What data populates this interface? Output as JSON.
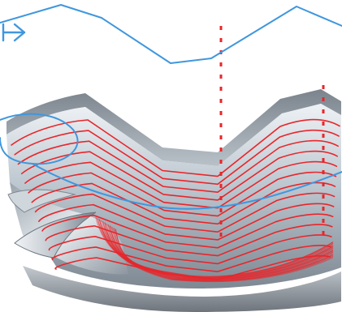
{
  "colors": {
    "background": "#ffffff",
    "rapid_move_path": "#3f97de",
    "cutting_toolpath": "#e8262b",
    "surface_light": "#d6dde3",
    "surface_mid": "#a8b2bb",
    "surface_dark": "#66707a",
    "base_plate": "#8f969d"
  },
  "layers": [
    {
      "id": "machined-surface",
      "kind": "3d-sculptured-surface"
    },
    {
      "id": "contour-toolpath",
      "kind": "offset-contour-lines",
      "color_key": "cutting_toolpath",
      "line_count": 14
    },
    {
      "id": "plunge-markers",
      "kind": "dashed-vertical-lines",
      "color_key": "cutting_toolpath",
      "count": 2
    },
    {
      "id": "rapid-path",
      "kind": "polyline-with-loop",
      "color_key": "rapid_move_path"
    },
    {
      "id": "entry-arrow",
      "kind": "arrow-icon",
      "color_key": "rapid_move_path"
    }
  ]
}
